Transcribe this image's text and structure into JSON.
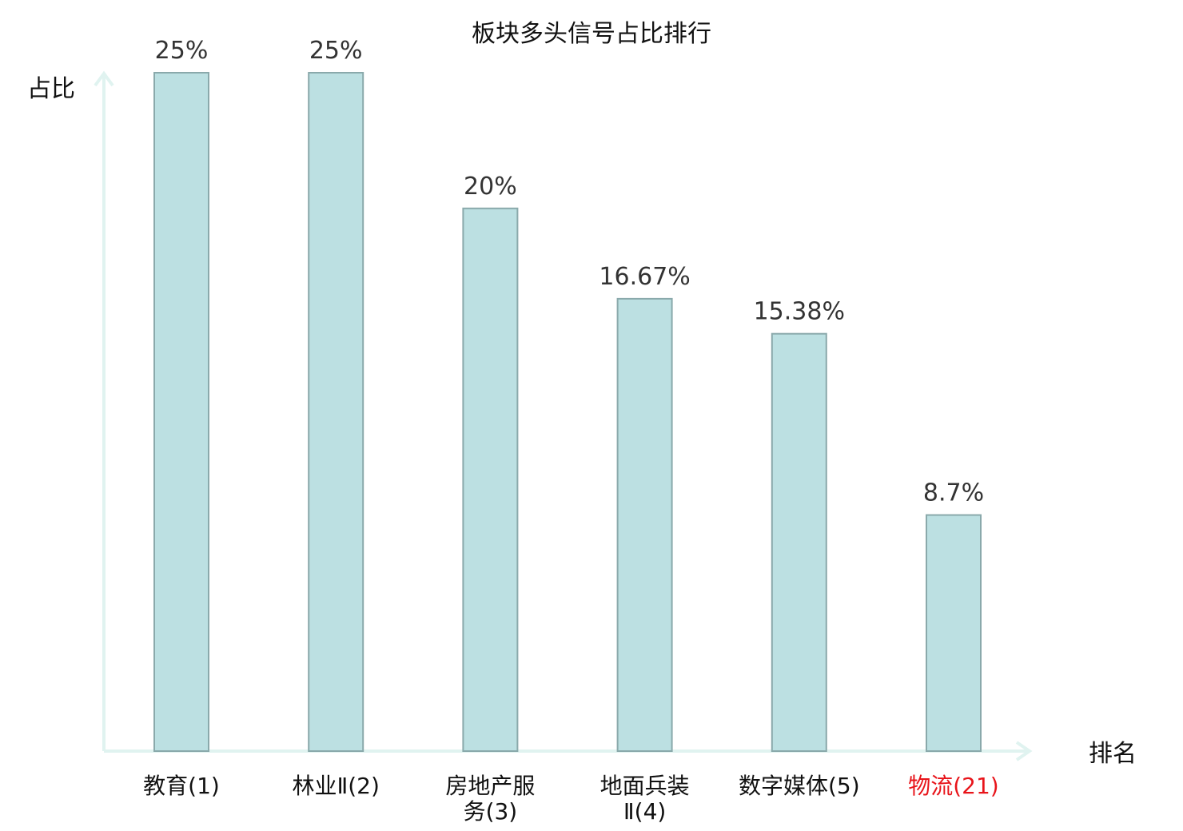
{
  "chart_data": {
    "type": "bar",
    "title": "板块多头信号占比排行",
    "xlabel": "排名",
    "ylabel": "占比",
    "categories": [
      [
        "教育(1)"
      ],
      [
        "林业Ⅱ(2)"
      ],
      [
        "房地产服",
        "务(3)"
      ],
      [
        "地面兵装",
        "Ⅱ(4)"
      ],
      [
        "数字媒体(5)"
      ],
      [
        "物流(21)"
      ]
    ],
    "values": [
      25,
      25,
      20,
      16.67,
      15.38,
      8.7
    ],
    "value_labels": [
      "25%",
      "25%",
      "20%",
      "16.67%",
      "15.38%",
      "8.7%"
    ],
    "highlight_index": 5,
    "ylim": [
      0,
      25
    ],
    "grid": false,
    "colors": {
      "bar_fill": "#bce0e2",
      "bar_stroke": "#8aa9ab",
      "axis": "#e0f3f0",
      "label": "#111111",
      "highlight_label": "#e8141a"
    }
  }
}
